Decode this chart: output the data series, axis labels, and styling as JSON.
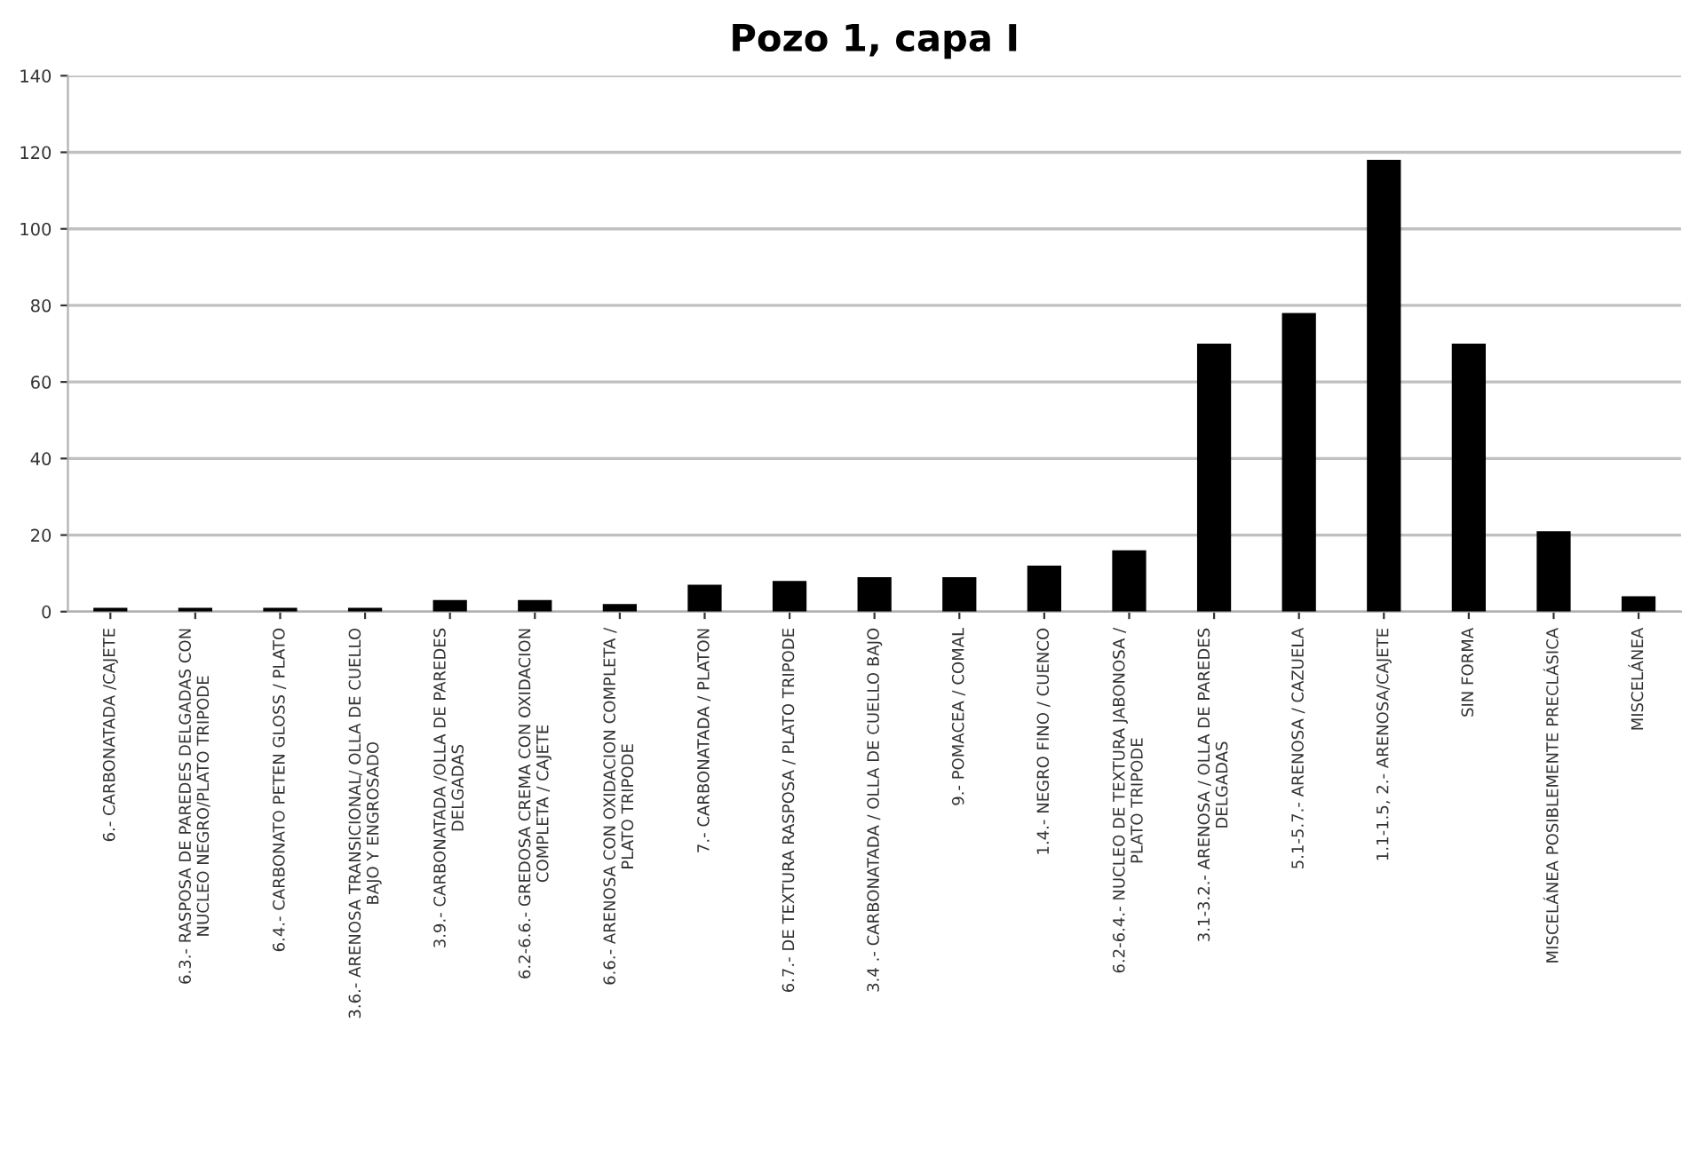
{
  "chart_data": {
    "type": "bar",
    "title": "Pozo 1, capa I",
    "categories": [
      "6.- CARBONATADA /CAJETE",
      "6.3.- RASPOSA DE PAREDES DELGADAS CON\nNUCLEO NEGRO/PLATO TRIPODE",
      "6.4.- CARBONATO PETEN GLOSS / PLATO",
      "3.6.- ARENOSA TRANSICIONAL/ OLLA DE CUELLO\nBAJO Y ENGROSADO",
      "3.9.- CARBONATADA /OLLA DE PAREDES\nDELGADAS",
      "6.2-6.6.- GREDOSA CREMA CON OXIDACION\nCOMPLETA / CAJETE",
      "6.6.- ARENOSA CON OXIDACION COMPLETA /\nPLATO TRIPODE",
      "7.- CARBONATADA / PLATON",
      "6.7.- DE TEXTURA RASPOSA / PLATO TRIPODE",
      "3.4 .- CARBONATADA / OLLA DE CUELLO BAJO",
      "9.- POMACEA / COMAL",
      "1.4.- NEGRO FINO / CUENCO",
      "6.2-6.4.- NUCLEO DE TEXTURA JABONOSA /\nPLATO TRIPODE",
      "3.1-3.2.- ARENOSA / OLLA DE PAREDES\nDELGADAS",
      "5.1-5.7.- ARENOSA / CAZUELA",
      "1.1-1.5, 2.- ARENOSA/CAJETE",
      "SIN FORMA",
      "MISCELÁNEA POSIBLEMENTE PRECLÁSICA",
      "MISCELÁNEA"
    ],
    "values": [
      1,
      1,
      1,
      1,
      3,
      3,
      2,
      7,
      8,
      9,
      9,
      12,
      16,
      70,
      78,
      118,
      70,
      21,
      4
    ],
    "color": "#000000",
    "ylim": [
      0,
      140
    ],
    "yticks": [
      0,
      20,
      40,
      60,
      80,
      100,
      120,
      140
    ],
    "grid": "y"
  }
}
